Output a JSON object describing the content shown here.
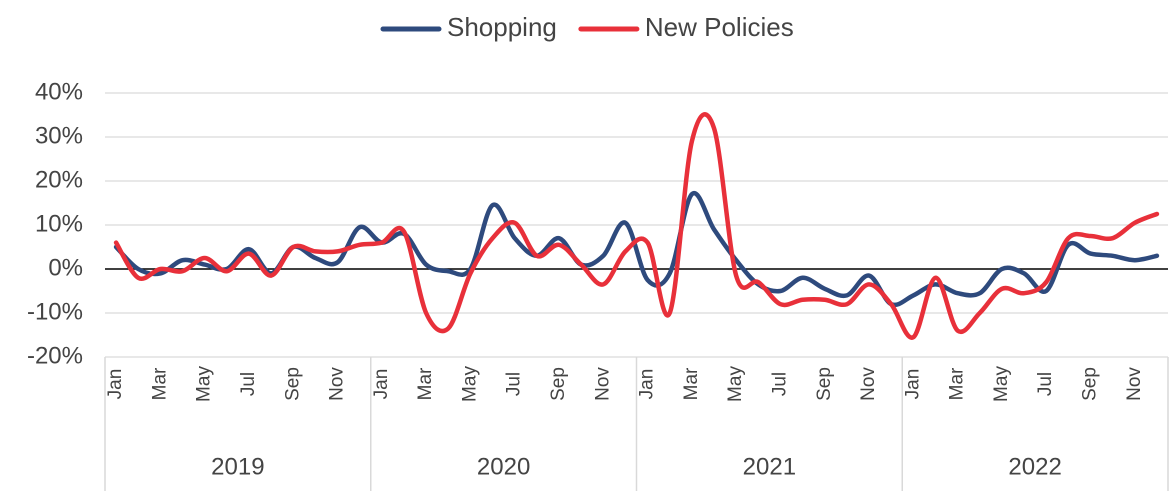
{
  "chart_data": {
    "type": "line",
    "categories": [
      "Jan",
      null,
      "Mar",
      null,
      "May",
      null,
      "Jul",
      null,
      "Sep",
      null,
      "Nov",
      null,
      "Jan",
      null,
      "Mar",
      null,
      "May",
      null,
      "Jul",
      null,
      "Sep",
      null,
      "Nov",
      null,
      "Jan",
      null,
      "Mar",
      null,
      "May",
      null,
      "Jul",
      null,
      "Sep",
      null,
      "Nov",
      null,
      "Jan",
      null,
      "Mar",
      null,
      "May",
      null,
      "Jul",
      null,
      "Sep",
      null,
      "Nov",
      null
    ],
    "groups": [
      "2019",
      "2020",
      "2021",
      "2022"
    ],
    "series": [
      {
        "name": "Shopping",
        "color": "#2e4a7d",
        "values": [
          5,
          0,
          -1,
          2,
          1,
          0,
          4.5,
          -1,
          5,
          2.5,
          1.5,
          9.5,
          6,
          8,
          1,
          -0.5,
          0,
          14.5,
          7,
          3,
          7,
          1,
          3,
          10.5,
          -2.5,
          -1,
          17,
          9,
          2,
          -3.5,
          -5,
          -2,
          -4.5,
          -6,
          -1.5,
          -8,
          -6,
          -3.5,
          -5.5,
          -5.5,
          0,
          -1,
          -5,
          5.5,
          3.5,
          3,
          2,
          3
        ]
      },
      {
        "name": "New Policies",
        "color": "#e8303a",
        "values": [
          6,
          -2,
          0,
          -0.5,
          2.5,
          -0.5,
          3.5,
          -1.5,
          5,
          4,
          4,
          5.5,
          6,
          8.5,
          -10,
          -13.5,
          -1,
          7,
          10.5,
          3,
          5.5,
          1,
          -3.5,
          4,
          6,
          -10,
          29,
          32,
          -1.5,
          -3,
          -8,
          -7,
          -7,
          -8,
          -3.5,
          -8,
          -15.5,
          -2,
          -14,
          -10,
          -4.5,
          -5.5,
          -3,
          7,
          7.5,
          7,
          10.5,
          12.5
        ]
      }
    ],
    "ylim": [
      -20,
      40
    ],
    "yticks": [
      {
        "value": -20,
        "label": "-20%"
      },
      {
        "value": -10,
        "label": "-10%"
      },
      {
        "value": 0,
        "label": "0%"
      },
      {
        "value": 10,
        "label": "10%"
      },
      {
        "value": 20,
        "label": "20%"
      },
      {
        "value": 30,
        "label": "30%"
      },
      {
        "value": 40,
        "label": "40%"
      }
    ],
    "grid": true,
    "legend": "top"
  }
}
